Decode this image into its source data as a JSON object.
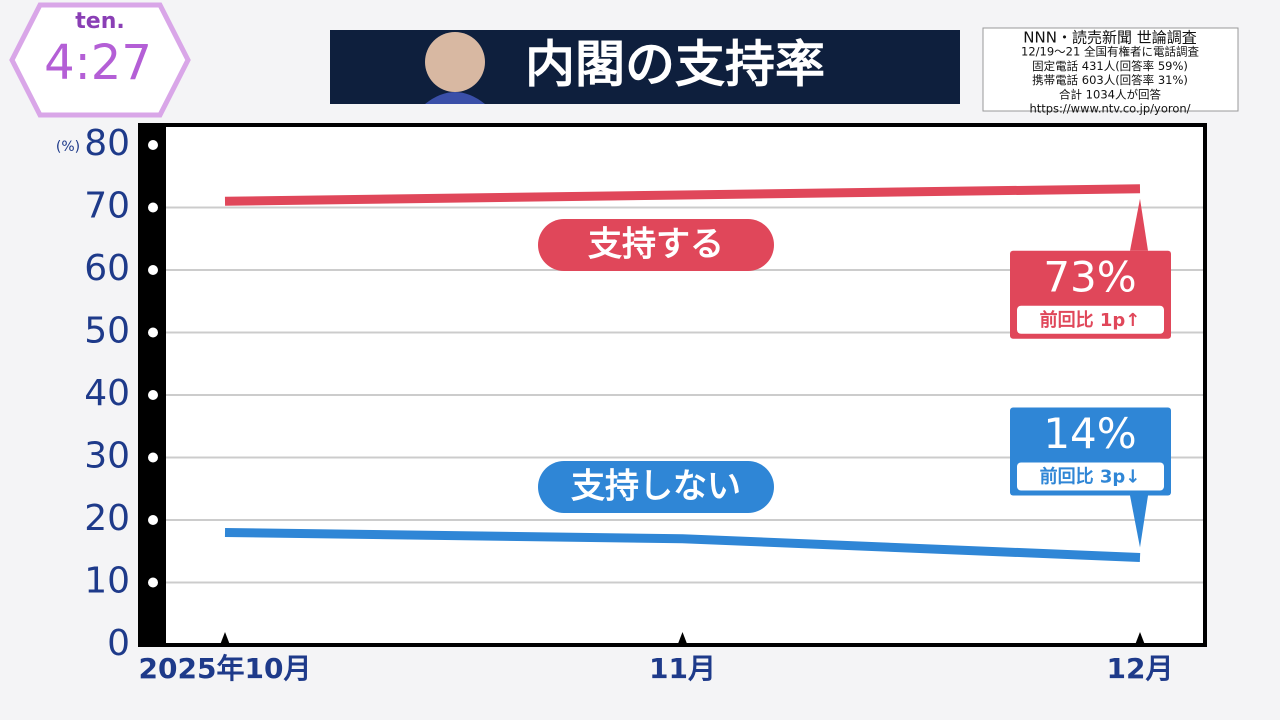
{
  "header": {
    "logo": "ten.",
    "time": "4:27",
    "title": "内閣の支持率",
    "source": [
      "NNN・読売新聞 世論調査",
      "12/19～21 全国有権者に電話調査",
      "固定電話 431人(回答率 59%)",
      "携帯電話 603人(回答率 31%)",
      "合計 1034人が回答",
      "https://www.ntv.co.jp/yoron/"
    ]
  },
  "chart_data": {
    "type": "line",
    "y_unit_label": "(%)",
    "categories": [
      "2025年10月",
      "11月",
      "12月"
    ],
    "series": [
      {
        "name": "支持する",
        "color": "#e0475a",
        "values": [
          71,
          72,
          73
        ],
        "value_labels": [
          null,
          null,
          "73%"
        ],
        "change_label": "前回比 1p↑"
      },
      {
        "name": "支持しない",
        "color": "#2f86d6",
        "values": [
          18,
          17,
          14
        ],
        "value_labels": [
          null,
          null,
          "14%"
        ],
        "change_label": "前回比 3p↓"
      }
    ],
    "ylim": [
      0,
      80
    ],
    "yticks": [
      0,
      10,
      20,
      30,
      40,
      50,
      60,
      70,
      80
    ],
    "grid": true
  }
}
